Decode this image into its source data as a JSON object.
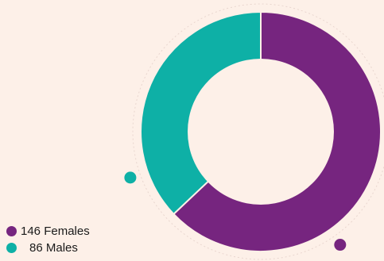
{
  "chart_data": {
    "type": "pie",
    "variant": "donut",
    "title": "",
    "slices": [
      {
        "label": "Females",
        "value": 146,
        "color": "#76257f"
      },
      {
        "label": "Males",
        "value": 86,
        "color": "#0eb0a6"
      }
    ],
    "legend": {
      "placement": "bottom-left",
      "items": [
        {
          "text": "146 Females",
          "color": "#76257f"
        },
        {
          "text": "86 Males",
          "color": "#0eb0a6"
        }
      ]
    }
  },
  "colors": {
    "background": "#fdf0e8",
    "female": "#76257f",
    "male": "#0eb0a6"
  }
}
